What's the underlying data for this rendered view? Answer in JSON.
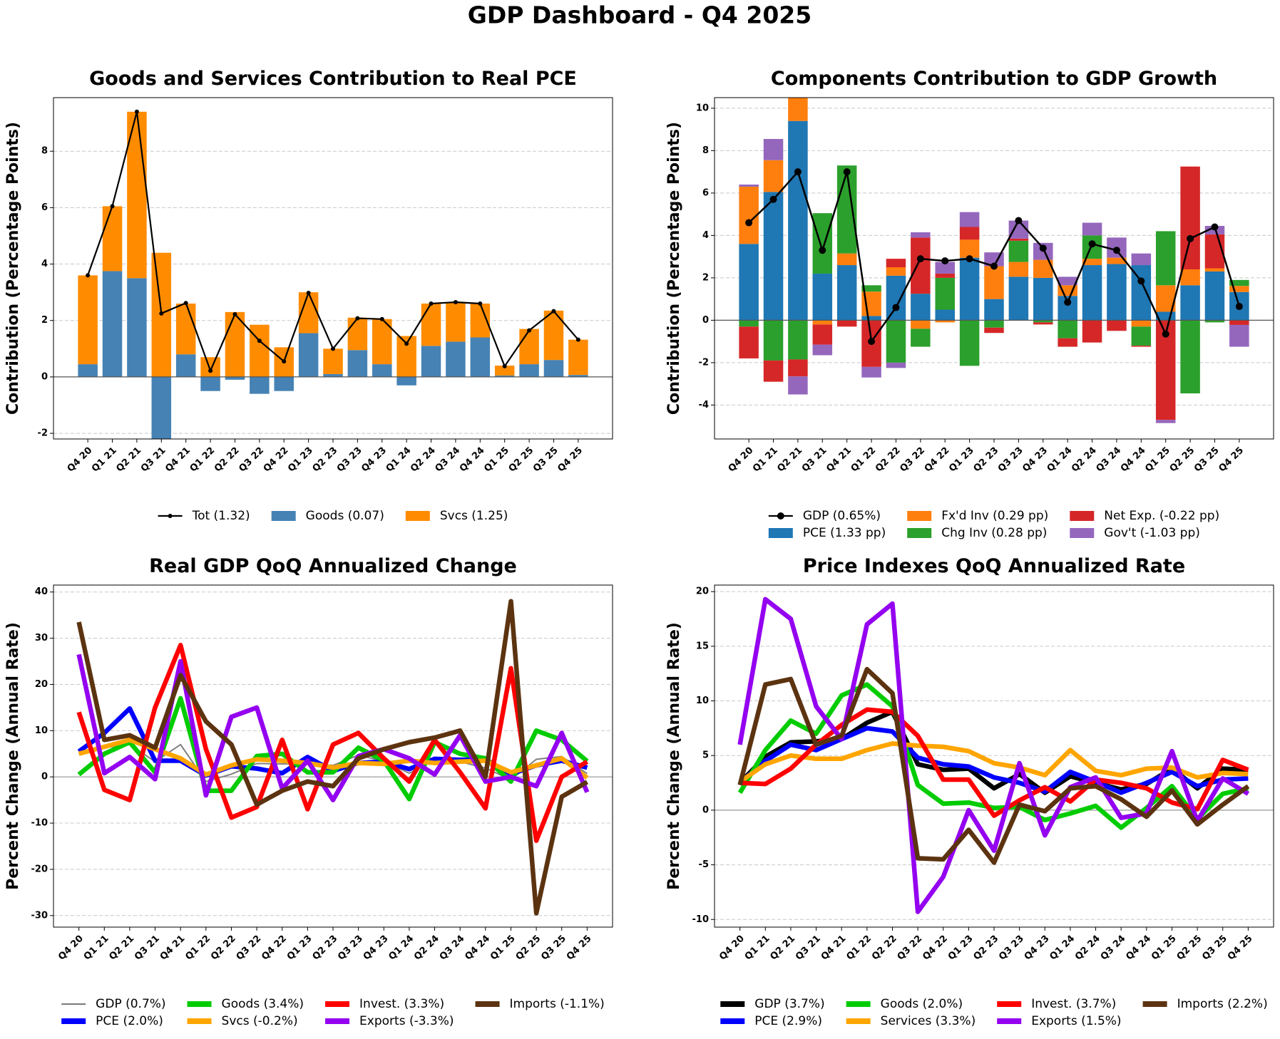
{
  "title": "GDP Dashboard - Q4 2025",
  "chart_data": [
    {
      "type": "bar",
      "stacked": true,
      "title": "Goods and Services Contribution to Real PCE",
      "ylabel": "Contribution (Percentage Points)",
      "categories": [
        "Q4 20",
        "Q1 21",
        "Q2 21",
        "Q3 21",
        "Q4 21",
        "Q1 22",
        "Q2 22",
        "Q3 22",
        "Q4 22",
        "Q1 23",
        "Q2 23",
        "Q3 23",
        "Q4 23",
        "Q1 24",
        "Q2 24",
        "Q3 24",
        "Q4 24",
        "Q1 25",
        "Q2 25",
        "Q3 25",
        "Q4 25"
      ],
      "ylim": [
        -2.2,
        9.9
      ],
      "yticks": [
        -2,
        0,
        2,
        4,
        6,
        8
      ],
      "grid": true,
      "series": [
        {
          "name": "Tot (1.32)",
          "type": "line",
          "marker": true,
          "color": "#000000",
          "values": [
            3.6,
            6.05,
            9.4,
            2.25,
            2.62,
            0.22,
            2.22,
            1.28,
            0.55,
            2.98,
            1.0,
            2.08,
            2.05,
            1.18,
            2.6,
            2.65,
            2.6,
            0.38,
            1.65,
            2.33,
            1.32
          ]
        },
        {
          "name": "Goods (0.07)",
          "type": "bar",
          "color": "#4682b4",
          "values": [
            0.45,
            3.75,
            3.5,
            -2.2,
            0.8,
            -0.5,
            -0.1,
            -0.6,
            -0.5,
            1.55,
            0.1,
            0.95,
            0.45,
            -0.3,
            1.1,
            1.25,
            1.4,
            0.05,
            0.45,
            0.6,
            0.07
          ]
        },
        {
          "name": "Svcs (1.25)",
          "type": "bar",
          "color": "#ff8c00",
          "values": [
            3.15,
            2.3,
            5.9,
            4.4,
            1.8,
            0.7,
            2.3,
            1.85,
            1.05,
            1.45,
            0.9,
            1.15,
            1.6,
            1.45,
            1.5,
            1.4,
            1.2,
            0.35,
            1.25,
            1.75,
            1.25
          ]
        }
      ]
    },
    {
      "type": "bar",
      "stacked": true,
      "title": "Components Contribution to GDP Growth",
      "ylabel": "Contribution (Percentage Points)",
      "categories": [
        "Q4 20",
        "Q1 21",
        "Q2 21",
        "Q3 21",
        "Q4 21",
        "Q1 22",
        "Q2 22",
        "Q3 22",
        "Q4 22",
        "Q1 23",
        "Q2 23",
        "Q3 23",
        "Q4 23",
        "Q1 24",
        "Q2 24",
        "Q3 24",
        "Q4 24",
        "Q1 25",
        "Q2 25",
        "Q3 25",
        "Q4 25"
      ],
      "ylim": [
        -5.6,
        10.5
      ],
      "yticks": [
        -4,
        -2,
        0,
        2,
        4,
        6,
        8,
        10
      ],
      "grid": true,
      "series": [
        {
          "name": "GDP (0.65%)",
          "type": "line",
          "marker": true,
          "color": "#000000",
          "values": [
            4.6,
            5.7,
            7.0,
            3.3,
            7.0,
            -1.0,
            0.6,
            2.9,
            2.8,
            2.9,
            2.55,
            4.7,
            3.4,
            0.85,
            3.6,
            3.3,
            1.85,
            -0.65,
            3.85,
            4.4,
            0.65
          ]
        },
        {
          "name": "PCE (1.33 pp)",
          "type": "bar",
          "color": "#1f77b4",
          "values": [
            3.6,
            6.05,
            9.4,
            2.2,
            2.6,
            0.2,
            2.1,
            1.25,
            0.5,
            2.95,
            1.0,
            2.05,
            2.0,
            1.15,
            2.6,
            2.65,
            2.6,
            0.4,
            1.65,
            2.3,
            1.33
          ]
        },
        {
          "name": "Fx'd Inv (0.29 pp)",
          "type": "bar",
          "color": "#ff7f0e",
          "values": [
            2.7,
            1.5,
            1.2,
            -0.2,
            0.55,
            1.15,
            0.4,
            -0.4,
            -0.1,
            0.85,
            1.55,
            0.7,
            0.85,
            0.5,
            0.3,
            0.3,
            -0.3,
            1.25,
            0.75,
            0.15,
            0.29
          ]
        },
        {
          "name": "Chg Inv (0.28 pp)",
          "type": "bar",
          "color": "#2ca02c",
          "values": [
            -0.3,
            -1.9,
            -1.85,
            2.85,
            4.15,
            0.3,
            -2.0,
            -0.85,
            1.5,
            -2.15,
            -0.35,
            1.0,
            -0.1,
            -0.85,
            1.1,
            0,
            -0.9,
            2.55,
            -3.45,
            -0.1,
            0.28
          ]
        },
        {
          "name": "Net Exp. (-0.22 pp)",
          "type": "bar",
          "color": "#d62728",
          "values": [
            -1.5,
            -1.0,
            -0.8,
            -0.95,
            -0.3,
            -2.2,
            0.4,
            2.65,
            0.2,
            0.6,
            -0.25,
            0.1,
            -0.1,
            -0.4,
            -1.05,
            -0.5,
            -0.05,
            -4.7,
            4.85,
            1.6,
            -0.22
          ]
        },
        {
          "name": "Gov't (-1.03 pp)",
          "type": "bar",
          "color": "#9467bd",
          "values": [
            0.1,
            1.0,
            -0.85,
            -0.5,
            0,
            -0.5,
            -0.25,
            0.25,
            0.55,
            0.7,
            0.65,
            0.85,
            0.8,
            0.4,
            0.6,
            0.95,
            0.55,
            -0.15,
            0,
            0.4,
            -1.03
          ]
        }
      ]
    },
    {
      "type": "line",
      "title": "Real GDP QoQ Annualized Change",
      "ylabel": "Percent Change (Annual Rate)",
      "categories": [
        "Q4 20",
        "Q1 21",
        "Q2 21",
        "Q3 21",
        "Q4 21",
        "Q1 22",
        "Q2 22",
        "Q3 22",
        "Q4 22",
        "Q1 23",
        "Q2 23",
        "Q3 23",
        "Q4 23",
        "Q1 24",
        "Q2 24",
        "Q3 24",
        "Q4 24",
        "Q1 25",
        "Q2 25",
        "Q3 25",
        "Q4 25"
      ],
      "ylim": [
        -32.5,
        41.5
      ],
      "yticks": [
        -30,
        -20,
        -10,
        0,
        10,
        20,
        30,
        40
      ],
      "grid": true,
      "series": [
        {
          "name": "GDP (0.7%)",
          "color": "#808080",
          "values": [
            5.5,
            6.3,
            7.0,
            3.3,
            7.0,
            -1.0,
            0.6,
            2.9,
            2.8,
            2.9,
            2.5,
            4.7,
            3.4,
            0.8,
            3.6,
            3.3,
            1.9,
            -0.6,
            3.8,
            4.4,
            0.7
          ]
        },
        {
          "name": "PCE (2.0%)",
          "color": "#0000ff",
          "values": [
            5.5,
            9.5,
            14.8,
            3.5,
            3.5,
            0.3,
            2.3,
            1.8,
            0.8,
            4.3,
            1.3,
            3.0,
            3.3,
            1.7,
            3.9,
            3.7,
            3.8,
            0.6,
            2.5,
            3.5,
            2.0
          ]
        },
        {
          "name": "Goods (3.4%)",
          "color": "#00cc00",
          "values": [
            0.5,
            5.0,
            7.5,
            1.0,
            17.0,
            -3.0,
            -3.0,
            4.5,
            5.0,
            1.0,
            1.0,
            6.3,
            3.5,
            -4.8,
            7.5,
            5.0,
            4.0,
            -1.0,
            10.0,
            8.0,
            3.4
          ]
        },
        {
          "name": "Svcs (-0.2%)",
          "color": "#ffa500",
          "values": [
            5.0,
            6.5,
            8.0,
            6.0,
            4.0,
            0.5,
            2.5,
            3.8,
            3.5,
            3.0,
            2.0,
            3.0,
            2.8,
            3.5,
            3.0,
            3.3,
            3.5,
            1.0,
            2.5,
            4.0,
            -0.2
          ]
        },
        {
          "name": "Invest. (3.3%)",
          "color": "#ff0000",
          "values": [
            14.0,
            -2.8,
            -5.0,
            15.0,
            28.5,
            6.0,
            -8.8,
            -6.5,
            8.0,
            -7.0,
            7.0,
            9.5,
            4.0,
            -1.0,
            8.0,
            1.0,
            -6.8,
            23.5,
            -13.8,
            0.0,
            3.3
          ]
        },
        {
          "name": "Exports (-3.3%)",
          "color": "#9400f0",
          "values": [
            26.5,
            0.8,
            4.3,
            -0.5,
            25.0,
            -4.0,
            13.0,
            15.0,
            -2.5,
            3.5,
            -5.0,
            4.5,
            6.0,
            4.0,
            0.5,
            9.0,
            -1.0,
            0.0,
            -2.0,
            9.5,
            -3.3
          ]
        },
        {
          "name": "Imports (-1.1%)",
          "color": "#5c3310",
          "values": [
            33.5,
            8.0,
            9.0,
            6.3,
            22.0,
            12.0,
            7.0,
            -6.0,
            -3.0,
            -1.0,
            -2.0,
            4.0,
            6.0,
            7.5,
            8.5,
            10.0,
            0.0,
            38.0,
            -29.5,
            -4.3,
            -1.1
          ]
        }
      ]
    },
    {
      "type": "line",
      "title": "Price Indexes QoQ Annualized Rate",
      "ylabel": "Percent Change (Annual Rate)",
      "categories": [
        "Q4 20",
        "Q1 21",
        "Q2 21",
        "Q3 21",
        "Q4 21",
        "Q1 22",
        "Q2 22",
        "Q3 22",
        "Q4 22",
        "Q1 23",
        "Q2 23",
        "Q3 23",
        "Q4 23",
        "Q1 24",
        "Q2 24",
        "Q3 24",
        "Q4 24",
        "Q1 25",
        "Q2 25",
        "Q3 25",
        "Q4 25"
      ],
      "ylim": [
        -10.7,
        20.6
      ],
      "yticks": [
        -10,
        -5,
        0,
        5,
        10,
        15,
        20
      ],
      "grid": true,
      "series": [
        {
          "name": "GDP (3.7%)",
          "color": "#000000",
          "values": [
            2.5,
            4.9,
            6.2,
            6.3,
            6.5,
            8.0,
            9.0,
            4.2,
            3.7,
            3.8,
            2.0,
            3.3,
            1.6,
            3.1,
            2.5,
            1.9,
            2.4,
            3.8,
            2.0,
            3.8,
            3.7
          ]
        },
        {
          "name": "PCE (2.9%)",
          "color": "#0000ff",
          "values": [
            2.5,
            4.5,
            6.0,
            5.5,
            6.5,
            7.5,
            7.2,
            4.8,
            4.2,
            4.0,
            3.0,
            2.5,
            1.7,
            3.5,
            2.6,
            1.6,
            2.5,
            3.5,
            2.2,
            2.8,
            2.9
          ]
        },
        {
          "name": "Goods (2.0%)",
          "color": "#00cc00",
          "values": [
            1.6,
            5.5,
            8.2,
            7.0,
            10.5,
            11.5,
            9.5,
            2.3,
            0.6,
            0.7,
            0.2,
            0.3,
            -0.9,
            -0.3,
            0.4,
            -1.6,
            0.2,
            2.2,
            -0.8,
            1.5,
            2.0
          ]
        },
        {
          "name": "Services (3.3%)",
          "color": "#ffa500",
          "values": [
            2.6,
            4.2,
            5.0,
            4.7,
            4.7,
            5.5,
            6.1,
            5.9,
            5.8,
            5.4,
            4.3,
            3.9,
            3.2,
            5.5,
            3.6,
            3.2,
            3.8,
            3.9,
            3.0,
            3.4,
            3.3
          ]
        },
        {
          "name": "Invest. (3.7%)",
          "color": "#ff0000",
          "values": [
            2.5,
            2.4,
            3.8,
            6.0,
            7.8,
            9.2,
            9.0,
            6.8,
            2.8,
            2.8,
            -0.5,
            0.9,
            2.1,
            0.8,
            2.8,
            2.5,
            2.0,
            0.7,
            0.1,
            4.6,
            3.7
          ]
        },
        {
          "name": "Exports (1.5%)",
          "color": "#9400f0",
          "values": [
            6.0,
            19.3,
            17.5,
            9.5,
            6.5,
            17.0,
            18.9,
            -9.3,
            -6.1,
            0.0,
            -3.7,
            4.3,
            -2.3,
            2.1,
            3.0,
            -0.7,
            -0.3,
            5.4,
            -1.0,
            2.9,
            1.5
          ]
        },
        {
          "name": "Imports (2.2%)",
          "color": "#5c3310",
          "values": [
            2.3,
            11.5,
            12.0,
            6.0,
            6.8,
            12.9,
            10.7,
            -4.4,
            -4.5,
            -1.8,
            -4.8,
            0.5,
            -0.1,
            2.0,
            2.2,
            1.0,
            -0.6,
            1.8,
            -1.3,
            0.5,
            2.2
          ]
        }
      ]
    }
  ]
}
